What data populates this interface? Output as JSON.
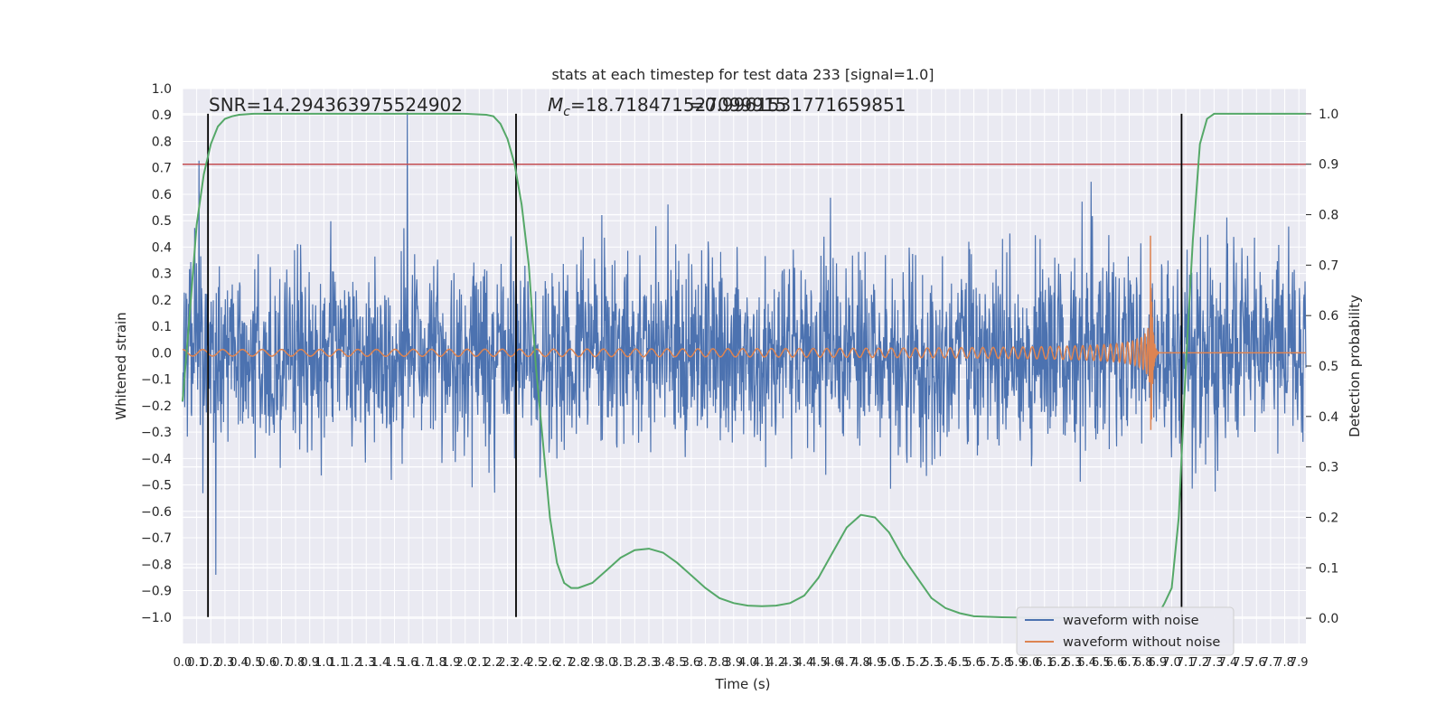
{
  "chart_data": {
    "type": "line",
    "title": "stats at each timestep for test data 233 [signal=1.0]",
    "xlabel": "Time (s)",
    "ylabel_left": "Whitened strain",
    "ylabel_right": "Detection probability",
    "xlim": [
      0.0,
      7.95
    ],
    "ylim_left": [
      -1.1,
      1.0
    ],
    "ylim_right": [
      -0.05,
      1.05
    ],
    "x_ticks": [
      0.0,
      0.1,
      0.2,
      0.3,
      0.4,
      0.5,
      0.6,
      0.7,
      0.8,
      0.9,
      1.0,
      1.1,
      1.2,
      1.3,
      1.4,
      1.5,
      1.6,
      1.7,
      1.8,
      1.9,
      2.0,
      2.1,
      2.2,
      2.3,
      2.4,
      2.5,
      2.6,
      2.7,
      2.8,
      2.9,
      3.0,
      3.1,
      3.2,
      3.3,
      3.4,
      3.5,
      3.6,
      3.7,
      3.8,
      3.9,
      4.0,
      4.1,
      4.2,
      4.3,
      4.4,
      4.5,
      4.6,
      4.7,
      4.8,
      4.9,
      5.0,
      5.1,
      5.2,
      5.3,
      5.4,
      5.5,
      5.6,
      5.7,
      5.8,
      5.9,
      6.0,
      6.1,
      6.2,
      6.3,
      6.4,
      6.5,
      6.6,
      6.7,
      6.8,
      6.9,
      7.0,
      7.1,
      7.2,
      7.3,
      7.4,
      7.5,
      7.6,
      7.7,
      7.8,
      7.9
    ],
    "x_tick_labels": [
      "0.0",
      "0.1",
      "0.2",
      "0.3",
      "0.4",
      "0.5",
      "0.6",
      "0.7",
      "0.8",
      "0.9",
      "1.0",
      "1.1",
      "1.2",
      "1.3",
      "1.4",
      "1.5",
      "1.6",
      "1.7",
      "1.8",
      "1.9",
      "2.0",
      "2.1",
      "2.2",
      "2.3",
      "2.4",
      "2.5",
      "2.6",
      "2.7",
      "2.8",
      "2.9",
      "3.0",
      "3.1",
      "3.2",
      "3.3",
      "3.4",
      "3.5",
      "3.6",
      "3.7",
      "3.8",
      "3.9",
      "4.0",
      "4.1",
      "4.2",
      "4.3",
      "4.4",
      "4.5",
      "4.6",
      "4.7",
      "4.8",
      "4.9",
      "5.0",
      "5.1",
      "5.2",
      "5.3",
      "5.4",
      "5.5",
      "5.6",
      "5.7",
      "5.8",
      "5.9",
      "6.0",
      "6.1",
      "6.2",
      "6.3",
      "6.4",
      "6.5",
      "6.6",
      "6.7",
      "6.8",
      "6.9",
      "7.0",
      "7.1",
      "7.2",
      "7.3",
      "7.4",
      "7.5",
      "7.6",
      "7.7",
      "7.8",
      "7.9"
    ],
    "y_left_ticks": [
      1.0,
      0.9,
      0.8,
      0.7,
      0.6,
      0.5,
      0.4,
      0.3,
      0.2,
      0.1,
      0.0,
      -0.1,
      -0.2,
      -0.3,
      -0.4,
      -0.5,
      -0.6,
      -0.7,
      -0.8,
      -0.9,
      -1.0
    ],
    "y_left_tick_labels": [
      "1.0",
      "0.9",
      "0.8",
      "0.7",
      "0.6",
      "0.5",
      "0.4",
      "0.3",
      "0.2",
      "0.1",
      "0.0",
      "−0.1",
      "−0.2",
      "−0.3",
      "−0.4",
      "−0.5",
      "−0.6",
      "−0.7",
      "−0.8",
      "−0.9",
      "−1.0"
    ],
    "y_right_ticks": [
      1.0,
      0.9,
      0.8,
      0.7,
      0.6,
      0.5,
      0.4,
      0.3,
      0.2,
      0.1,
      0.0
    ],
    "y_right_tick_labels": [
      "1.0",
      "0.9",
      "0.8",
      "0.7",
      "0.6",
      "0.5",
      "0.4",
      "0.3",
      "0.2",
      "0.1",
      "0.0"
    ],
    "threshold_probability": 0.9,
    "vertical_markers_s": [
      0.18,
      2.36,
      7.07
    ],
    "chirp": {
      "start_s": 0.0,
      "merger_s": 6.85,
      "peak_strain": 0.56,
      "base_amplitude": 0.012
    },
    "noise": {
      "typical_strain_range": [
        -0.5,
        0.5
      ],
      "extreme_strain_range": [
        -0.93,
        0.91
      ]
    },
    "series": [
      {
        "name": "waveform with noise",
        "color": "#4c72b0",
        "axis": "left"
      },
      {
        "name": "waveform without noise",
        "color": "#dd8452",
        "axis": "left"
      },
      {
        "name": "detection probability",
        "color": "#55a868",
        "axis": "right",
        "x": [
          0.0,
          0.05,
          0.1,
          0.15,
          0.2,
          0.25,
          0.3,
          0.35,
          0.4,
          0.5,
          0.7,
          1.0,
          1.5,
          2.0,
          2.15,
          2.2,
          2.25,
          2.3,
          2.35,
          2.4,
          2.45,
          2.5,
          2.55,
          2.6,
          2.65,
          2.7,
          2.75,
          2.8,
          2.9,
          3.0,
          3.1,
          3.2,
          3.3,
          3.4,
          3.5,
          3.6,
          3.7,
          3.8,
          3.9,
          4.0,
          4.1,
          4.2,
          4.3,
          4.4,
          4.5,
          4.6,
          4.7,
          4.8,
          4.9,
          5.0,
          5.1,
          5.2,
          5.3,
          5.4,
          5.5,
          5.6,
          5.8,
          6.0,
          6.2,
          6.4,
          6.6,
          6.8,
          6.9,
          6.95,
          7.0,
          7.05,
          7.1,
          7.15,
          7.2,
          7.25,
          7.3,
          7.4,
          7.6,
          7.95
        ],
        "y": [
          0.43,
          0.6,
          0.78,
          0.88,
          0.94,
          0.975,
          0.99,
          0.995,
          0.998,
          1.0,
          1.0,
          1.0,
          1.0,
          1.0,
          0.998,
          0.995,
          0.98,
          0.95,
          0.9,
          0.82,
          0.7,
          0.5,
          0.35,
          0.2,
          0.11,
          0.07,
          0.06,
          0.06,
          0.07,
          0.095,
          0.12,
          0.135,
          0.138,
          0.13,
          0.11,
          0.085,
          0.06,
          0.04,
          0.03,
          0.025,
          0.024,
          0.025,
          0.03,
          0.045,
          0.08,
          0.13,
          0.18,
          0.205,
          0.2,
          0.17,
          0.12,
          0.08,
          0.04,
          0.02,
          0.01,
          0.004,
          0.002,
          0.001,
          0.001,
          0.001,
          0.001,
          0.001,
          0.005,
          0.03,
          0.06,
          0.2,
          0.5,
          0.75,
          0.94,
          0.99,
          1.0,
          1.0,
          1.0,
          1.0
        ]
      }
    ],
    "annotations": [
      "SNR=14.294363975524902",
      "$M_c$=18.718471527099915",
      "=0.9961531771659851"
    ],
    "legend": {
      "placement": "lower-right",
      "entries": [
        "waveform with noise",
        "waveform without noise"
      ]
    }
  },
  "annotation_text": {
    "snr": "SNR=14.294363975524902",
    "mc_symbol": "M",
    "mc_sub": "c",
    "mc_value": "=18.718471527099915",
    "prob": "=0.9961531771659851"
  }
}
